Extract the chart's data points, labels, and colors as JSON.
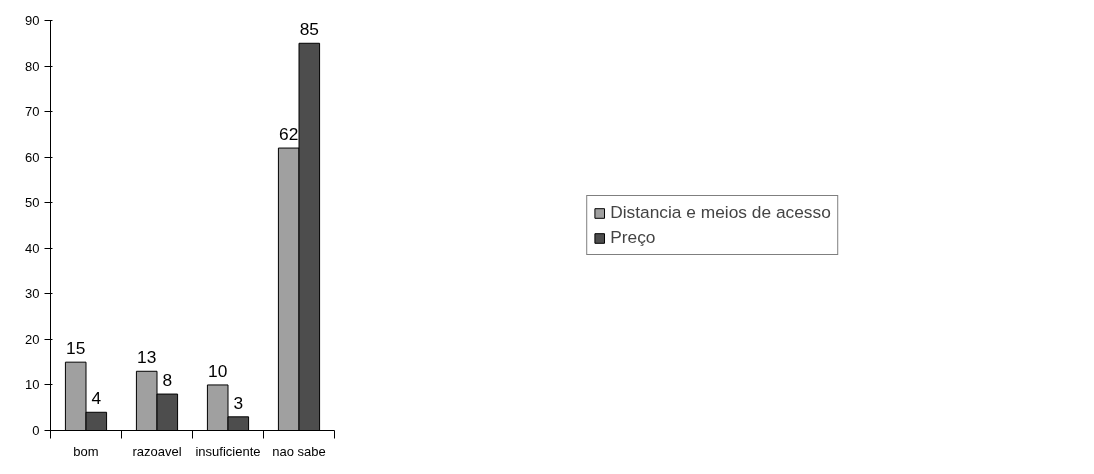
{
  "chart_data": {
    "type": "bar",
    "categories": [
      "bom",
      "razoavel",
      "insuficiente",
      "nao sabe"
    ],
    "series": [
      {
        "name": "Distancia e meios de acesso",
        "color": "#a0a0a0",
        "values": [
          15,
          13,
          10,
          62
        ]
      },
      {
        "name": "Preço",
        "color": "#4d4d4d",
        "values": [
          4,
          8,
          3,
          85
        ]
      }
    ],
    "ylim": [
      0,
      90
    ],
    "yticks": [
      0,
      10,
      20,
      30,
      40,
      50,
      60,
      70,
      80,
      90
    ],
    "data_labels": true,
    "grid": false,
    "legend": "right"
  }
}
